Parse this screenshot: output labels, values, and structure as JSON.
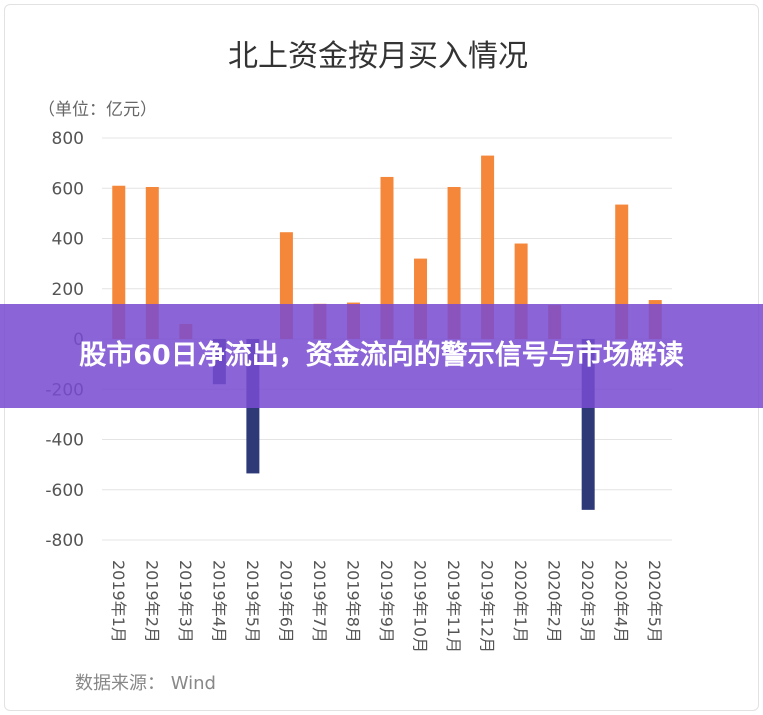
{
  "chart_data": {
    "type": "bar",
    "title": "北上资金按月买入情况",
    "unit_label": "（单位：亿元）",
    "source": "数据来源： Wind",
    "ylim": [
      -800,
      800
    ],
    "yticks": [
      800,
      600,
      400,
      200,
      0,
      -200,
      -400,
      -600,
      -800
    ],
    "grid": true,
    "categories": [
      "2019年1月",
      "2019年2月",
      "2019年3月",
      "2019年4月",
      "2019年5月",
      "2019年6月",
      "2019年7月",
      "2019年8月",
      "2019年9月",
      "2019年10月",
      "2019年11月",
      "2019年12月",
      "2020年1月",
      "2020年2月",
      "2020年3月",
      "2020年4月",
      "2020年5月"
    ],
    "values": [
      610,
      605,
      60,
      -180,
      -535,
      425,
      140,
      145,
      645,
      320,
      605,
      730,
      380,
      135,
      -680,
      535,
      155
    ],
    "colors": {
      "positive": "#f5873a",
      "negative": "#2e3a78"
    }
  },
  "banner": {
    "text": "股市60日净流出，资金流向的警示信号与市场解读"
  }
}
